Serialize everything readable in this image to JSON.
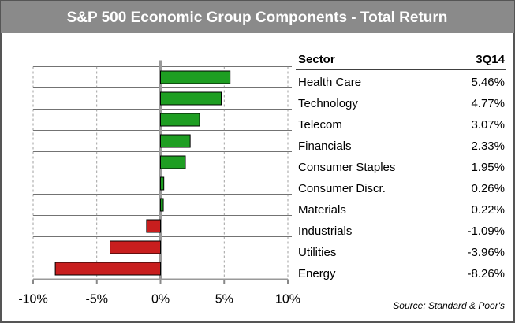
{
  "chart_data": {
    "type": "bar",
    "orientation": "horizontal",
    "title": "S&P 500 Economic Group Components - Total Return",
    "column_headers": [
      "Sector",
      "3Q14"
    ],
    "categories": [
      "Health Care",
      "Technology",
      "Telecom",
      "Financials",
      "Consumer Staples",
      "Consumer Discr.",
      "Materials",
      "Industrials",
      "Utilities",
      "Energy"
    ],
    "values": [
      5.46,
      4.77,
      3.07,
      2.33,
      1.95,
      0.26,
      0.22,
      -1.09,
      -3.96,
      -8.26
    ],
    "value_labels": [
      "5.46%",
      "4.77%",
      "3.07%",
      "2.33%",
      "1.95%",
      "0.26%",
      "0.22%",
      "-1.09%",
      "-3.96%",
      "-8.26%"
    ],
    "positive_color": "#1e9e22",
    "negative_color": "#c81e1e",
    "xlim": [
      -10,
      10
    ],
    "xticks": [
      {
        "value": -10,
        "label": "-10%"
      },
      {
        "value": -5,
        "label": "-5%"
      },
      {
        "value": 0,
        "label": "0%"
      },
      {
        "value": 5,
        "label": "5%"
      },
      {
        "value": 10,
        "label": "10%"
      }
    ],
    "grid": true,
    "source": "Source: Standard & Poor's"
  }
}
